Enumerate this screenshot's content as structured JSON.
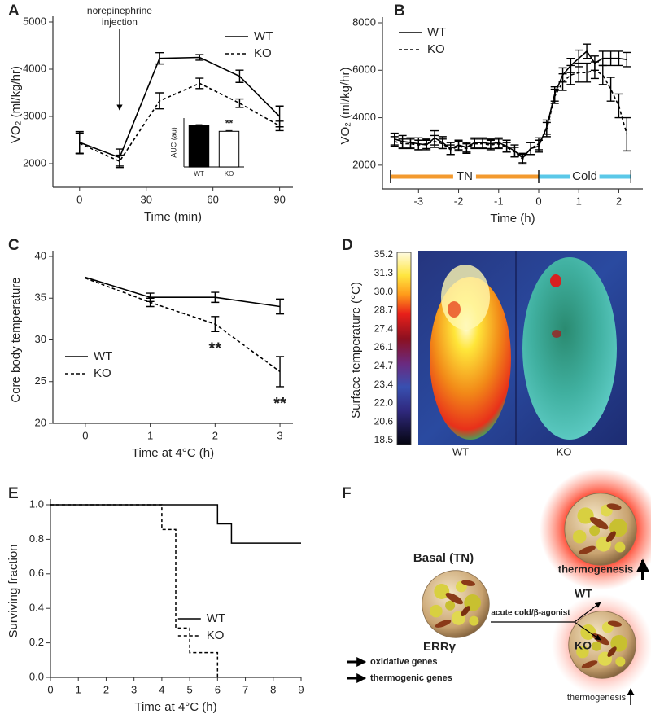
{
  "chart_data": [
    {
      "panel": "A",
      "type": "line",
      "x": [
        0,
        18,
        36,
        54,
        72,
        90
      ],
      "series": [
        {
          "name": "WT",
          "color": "#000000",
          "linestyle": "solid",
          "values": [
            2450,
            2130,
            4230,
            4250,
            3850,
            3000
          ],
          "errors": [
            230,
            180,
            120,
            60,
            130,
            220
          ]
        },
        {
          "name": "KO",
          "color": "#000000",
          "linestyle": "dashed",
          "values": [
            2430,
            2050,
            3330,
            3700,
            3280,
            2800
          ],
          "errors": [
            220,
            130,
            170,
            110,
            90,
            100
          ]
        }
      ],
      "xlim": [
        -12,
        96
      ],
      "ylim": [
        1500,
        5000
      ],
      "xticks": [
        0,
        30,
        60,
        90
      ],
      "yticks": [
        2000,
        3000,
        4000,
        5000
      ],
      "xlabel": "Time (min)",
      "ylabel": "VO₂ (ml/kg/hr)",
      "legend": "upper right",
      "annotations": [
        {
          "lines": [
            "norepinephrine",
            "injection"
          ],
          "x": 18
        }
      ]
    },
    {
      "type": "bar",
      "categories": [
        "WT",
        "KO"
      ],
      "values": [
        11.8,
        10.2
      ],
      "errors": [
        0.3,
        0.2
      ],
      "colors": [
        "#000000",
        "#ffffff"
      ],
      "ylim": [
        0,
        14
      ],
      "ylabel": "AUC (au)",
      "significance": [
        null,
        "**"
      ]
    },
    {
      "panel": "B",
      "type": "line",
      "x": [
        -3.6,
        -3.4,
        -3.2,
        -3.0,
        -2.8,
        -2.6,
        -2.4,
        -2.2,
        -2.0,
        -1.8,
        -1.6,
        -1.4,
        -1.2,
        -1.0,
        -0.8,
        -0.6,
        -0.4,
        -0.2,
        0.0,
        0.2,
        0.4,
        0.6,
        0.8,
        1.0,
        1.2,
        1.4,
        1.6,
        1.8,
        2.0,
        2.2
      ],
      "series": [
        {
          "name": "WT",
          "color": "#000000",
          "linestyle": "solid",
          "values": [
            3100,
            3000,
            2950,
            2900,
            2850,
            3150,
            2950,
            2700,
            2850,
            2750,
            2950,
            2950,
            2900,
            2950,
            2800,
            2600,
            2300,
            2700,
            2800,
            3600,
            5000,
            5800,
            6200,
            6500,
            6800,
            6300,
            6500,
            6500,
            6500,
            6450
          ],
          "errors": [
            250,
            250,
            200,
            250,
            200,
            300,
            250,
            250,
            200,
            200,
            200,
            200,
            200,
            200,
            250,
            250,
            200,
            250,
            250,
            300,
            300,
            300,
            300,
            350,
            300,
            300,
            300,
            300,
            300,
            300
          ]
        },
        {
          "name": "KO",
          "color": "#000000",
          "linestyle": "dashed",
          "values": [
            3000,
            2900,
            2900,
            2850,
            2900,
            3000,
            2900,
            2650,
            2800,
            2700,
            2900,
            2900,
            2850,
            2900,
            2750,
            2550,
            2250,
            2700,
            2900,
            3500,
            4900,
            5500,
            5800,
            5900,
            5900,
            6000,
            5800,
            5200,
            4500,
            3300
          ],
          "errors": [
            200,
            200,
            200,
            200,
            200,
            250,
            200,
            200,
            200,
            200,
            200,
            200,
            200,
            200,
            200,
            200,
            200,
            250,
            250,
            300,
            300,
            350,
            400,
            400,
            400,
            350,
            400,
            500,
            500,
            700
          ]
        }
      ],
      "xlim": [
        -3.9,
        2.6
      ],
      "ylim": [
        1000,
        8000
      ],
      "xticks": [
        -3,
        -2,
        -1,
        0,
        1,
        2
      ],
      "yticks": [
        2000,
        4000,
        6000,
        8000
      ],
      "xlabel": "Time (h)",
      "ylabel": "VO₂ (ml/kg/hr)",
      "legend": "upper left",
      "phases": [
        {
          "label": "TN",
          "start": -3.7,
          "end": 0,
          "color": "#f39a2e"
        },
        {
          "label": "Cold",
          "start": 0,
          "end": 2.3,
          "color": "#5bc8e8"
        }
      ]
    },
    {
      "panel": "C",
      "type": "line",
      "x": [
        0,
        1,
        2,
        3
      ],
      "series": [
        {
          "name": "WT",
          "color": "#000000",
          "linestyle": "solid",
          "values": [
            37.5,
            35.1,
            35.1,
            34.0
          ],
          "errors": [
            null,
            0.5,
            0.6,
            0.9
          ]
        },
        {
          "name": "KO",
          "color": "#000000",
          "linestyle": "dashed",
          "values": [
            37.4,
            34.5,
            31.9,
            26.2
          ],
          "errors": [
            null,
            0.5,
            0.9,
            1.8
          ],
          "significance": [
            null,
            null,
            "**",
            "**"
          ]
        }
      ],
      "xlim": [
        -0.5,
        3.2
      ],
      "ylim": [
        20,
        40
      ],
      "xticks": [
        0,
        1,
        2,
        3
      ],
      "yticks": [
        20,
        25,
        30,
        35,
        40
      ],
      "xlabel": "Time at 4°C (h)",
      "ylabel": "Core body temperature",
      "legend": "center left"
    },
    {
      "panel": "E",
      "type": "step",
      "series": [
        {
          "name": "WT",
          "color": "#000000",
          "linestyle": "solid",
          "x": [
            0,
            6,
            6.5,
            9
          ],
          "values": [
            1,
            0.889,
            0.778,
            0.778
          ]
        },
        {
          "name": "KO",
          "color": "#000000",
          "linestyle": "dashed",
          "x": [
            0,
            4,
            4.5,
            5,
            6
          ],
          "values": [
            1,
            0.857,
            0.286,
            0.143,
            0
          ]
        }
      ],
      "xlim": [
        0,
        9
      ],
      "ylim": [
        0,
        1
      ],
      "xticks": [
        0,
        1,
        2,
        3,
        4,
        5,
        6,
        7,
        8,
        9
      ],
      "yticks": [
        {
          "value": 0,
          "label": "0.0"
        },
        0.2,
        0.4,
        0.6,
        0.8,
        {
          "value": 1,
          "label": "1.0"
        }
      ],
      "xlabel": "Time at 4°C (h)",
      "ylabel": "Surviving fraction",
      "legend": "lower center"
    }
  ],
  "thermal_image": {
    "panel": "D",
    "ylabel": "Surface temperature (°C)",
    "colorbar_labels": [
      "35.2",
      "31.3",
      "30.0",
      "28.7",
      "27.4",
      "26.1",
      "24.7",
      "23.4",
      "22.0",
      "20.6",
      "18.5"
    ],
    "subjects": [
      "WT",
      "KO"
    ]
  },
  "diagram": {
    "panel": "F",
    "basal_title": "Basal (TN)",
    "factor": "ERRγ",
    "stimulus": "acute cold/β-agonist",
    "genes": [
      "oxidative genes",
      "thermogenic genes"
    ],
    "outcomes": [
      {
        "label": "WT",
        "result": "thermogenesis"
      },
      {
        "label": "KO",
        "result": "thermogenesis"
      }
    ]
  }
}
